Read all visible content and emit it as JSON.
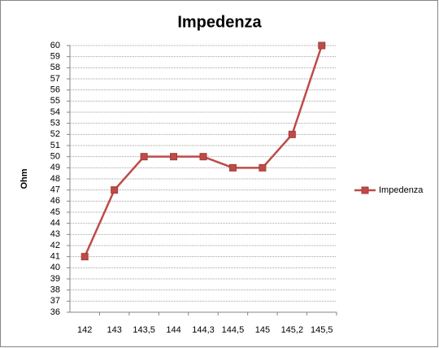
{
  "chart_data": {
    "type": "line",
    "title": "Impedenza",
    "y_label": "Ohm",
    "categories": [
      "142",
      "143",
      "143,5",
      "144",
      "144,3",
      "144,5",
      "145",
      "145,2",
      "145,5"
    ],
    "series": [
      {
        "name": "Impedenza",
        "color": "#be4b48",
        "values": [
          41,
          47,
          50,
          50,
          50,
          49,
          49,
          52,
          60
        ]
      }
    ],
    "ylim": [
      36,
      60
    ],
    "yticks": [
      36,
      37,
      38,
      39,
      40,
      41,
      42,
      43,
      44,
      45,
      46,
      47,
      48,
      49,
      50,
      51,
      52,
      53,
      54,
      55,
      56,
      57,
      58,
      59,
      60
    ],
    "grid": true,
    "legend": "right"
  }
}
